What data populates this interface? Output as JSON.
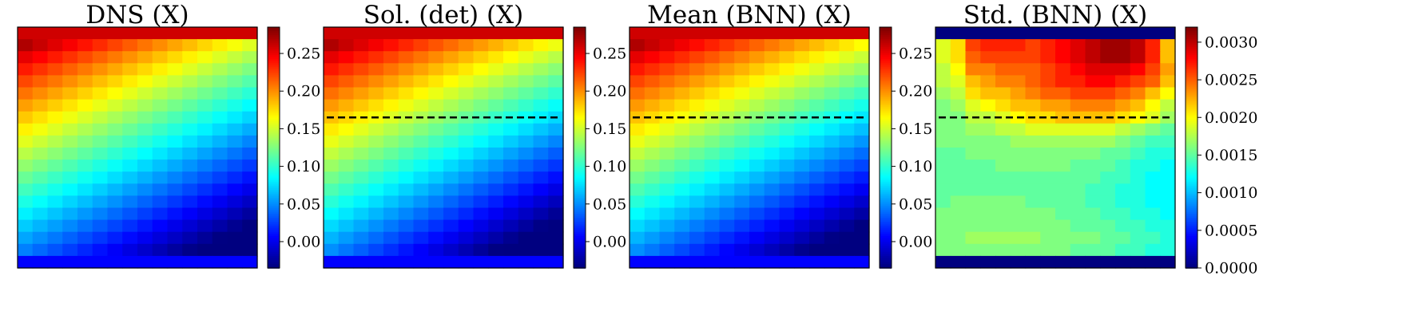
{
  "chart_data": [
    {
      "type": "heatmap",
      "title": "DNS (X)",
      "rows": 20,
      "cols": 16,
      "colormap": "jet",
      "vmin": -0.035,
      "vmax": 0.285,
      "colorbar_ticks": [
        0.0,
        0.05,
        0.1,
        0.15,
        0.2,
        0.25
      ],
      "colorbar_tick_labels": [
        "0.00",
        "0.05",
        "0.10",
        "0.15",
        "0.20",
        "0.25"
      ],
      "top_boundary_value": 0.26,
      "bottom_boundary_value": 0.005,
      "interior_top_left": 0.27,
      "interior_top_right": 0.155,
      "interior_bottom_left": 0.045,
      "interior_bottom_right": -0.025,
      "interior_bias": 0.0,
      "dashed_line": false,
      "grid": false
    },
    {
      "type": "heatmap",
      "title": "Sol. (det) (X)",
      "rows": 20,
      "cols": 16,
      "colormap": "jet",
      "vmin": -0.035,
      "vmax": 0.285,
      "colorbar_ticks": [
        0.0,
        0.05,
        0.1,
        0.15,
        0.2,
        0.25
      ],
      "colorbar_tick_labels": [
        "0.00",
        "0.05",
        "0.10",
        "0.15",
        "0.20",
        "0.25"
      ],
      "top_boundary_value": 0.26,
      "bottom_boundary_value": 0.005,
      "interior_top_left": 0.27,
      "interior_top_right": 0.16,
      "interior_bottom_left": 0.05,
      "interior_bottom_right": -0.03,
      "interior_bias": 0.0,
      "dashed_line": true,
      "dashed_line_row": 7.5,
      "grid": false
    },
    {
      "type": "heatmap",
      "title": "Mean (BNN) (X)",
      "rows": 20,
      "cols": 16,
      "colormap": "jet",
      "vmin": -0.035,
      "vmax": 0.285,
      "colorbar_ticks": [
        0.0,
        0.05,
        0.1,
        0.15,
        0.2,
        0.25
      ],
      "colorbar_tick_labels": [
        "0.00",
        "0.05",
        "0.10",
        "0.15",
        "0.20",
        "0.25"
      ],
      "top_boundary_value": 0.26,
      "bottom_boundary_value": 0.005,
      "interior_top_left": 0.27,
      "interior_top_right": 0.165,
      "interior_bottom_left": 0.05,
      "interior_bottom_right": -0.025,
      "interior_bias": 0.0,
      "dashed_line": true,
      "dashed_line_row": 7.5,
      "grid": false
    },
    {
      "type": "heatmap",
      "title": "Std. (BNN) (X)",
      "rows": 20,
      "cols": 16,
      "colormap": "jet",
      "vmin": 0.0,
      "vmax": 0.0032,
      "colorbar_ticks": [
        0.0,
        0.0005,
        0.001,
        0.0015,
        0.002,
        0.0025,
        0.003
      ],
      "colorbar_tick_labels": [
        "0.0000",
        "0.0005",
        "0.0010",
        "0.0015",
        "0.0020",
        "0.0025",
        "0.0030"
      ],
      "top_boundary_value": 0.0,
      "bottom_boundary_value": 0.0,
      "std_rows": [
        [
          0.0019,
          0.0021,
          0.0026,
          0.0027,
          0.0027,
          0.0027,
          0.0026,
          0.0027,
          0.0028,
          0.0029,
          0.003,
          0.0031,
          0.0031,
          0.003,
          0.0027,
          0.0022
        ],
        [
          0.0019,
          0.0021,
          0.0025,
          0.0026,
          0.0026,
          0.0026,
          0.0026,
          0.0027,
          0.0028,
          0.0029,
          0.003,
          0.0031,
          0.0031,
          0.003,
          0.0027,
          0.0022
        ],
        [
          0.0018,
          0.002,
          0.0024,
          0.0024,
          0.0025,
          0.0025,
          0.0025,
          0.0026,
          0.0027,
          0.0028,
          0.0029,
          0.0029,
          0.0029,
          0.0028,
          0.0026,
          0.0023
        ],
        [
          0.0018,
          0.0019,
          0.0022,
          0.0023,
          0.0024,
          0.0024,
          0.0025,
          0.0026,
          0.0027,
          0.0027,
          0.0028,
          0.0028,
          0.0027,
          0.0026,
          0.0025,
          0.0022
        ],
        [
          0.0017,
          0.0018,
          0.0021,
          0.0022,
          0.0022,
          0.0023,
          0.0024,
          0.0025,
          0.0025,
          0.0026,
          0.0026,
          0.0026,
          0.0025,
          0.0024,
          0.0022,
          0.002
        ],
        [
          0.0016,
          0.0017,
          0.0019,
          0.002,
          0.0021,
          0.0022,
          0.0022,
          0.0023,
          0.0023,
          0.0024,
          0.0024,
          0.0024,
          0.0023,
          0.0022,
          0.002,
          0.0018
        ],
        [
          0.0016,
          0.0016,
          0.0018,
          0.0018,
          0.0019,
          0.002,
          0.0021,
          0.0021,
          0.0022,
          0.0022,
          0.0022,
          0.0022,
          0.0021,
          0.002,
          0.0019,
          0.0017
        ],
        [
          0.0016,
          0.0016,
          0.0017,
          0.0017,
          0.0018,
          0.0018,
          0.0019,
          0.0019,
          0.0019,
          0.0019,
          0.0019,
          0.0019,
          0.0018,
          0.0017,
          0.0016,
          0.0015
        ],
        [
          0.0016,
          0.0016,
          0.0016,
          0.0016,
          0.0016,
          0.0017,
          0.0017,
          0.0017,
          0.0017,
          0.0017,
          0.0017,
          0.0017,
          0.0016,
          0.0015,
          0.0014,
          0.0014
        ],
        [
          0.0015,
          0.0015,
          0.0016,
          0.0016,
          0.0016,
          0.0016,
          0.0016,
          0.0016,
          0.0016,
          0.0016,
          0.0016,
          0.0015,
          0.0015,
          0.0014,
          0.0013,
          0.0013
        ],
        [
          0.0015,
          0.0015,
          0.0015,
          0.0015,
          0.0016,
          0.0016,
          0.0016,
          0.0016,
          0.0016,
          0.0015,
          0.0015,
          0.0015,
          0.0014,
          0.0013,
          0.0013,
          0.0012
        ],
        [
          0.0015,
          0.0015,
          0.0015,
          0.0015,
          0.0015,
          0.0015,
          0.0015,
          0.0015,
          0.0015,
          0.0015,
          0.0015,
          0.0014,
          0.0014,
          0.0013,
          0.0012,
          0.0012
        ],
        [
          0.0015,
          0.0015,
          0.0015,
          0.0015,
          0.0015,
          0.0015,
          0.0015,
          0.0015,
          0.0015,
          0.0015,
          0.0014,
          0.0014,
          0.0013,
          0.0013,
          0.0012,
          0.0012
        ],
        [
          0.0015,
          0.0016,
          0.0016,
          0.0016,
          0.0016,
          0.0016,
          0.0015,
          0.0015,
          0.0015,
          0.0015,
          0.0014,
          0.0014,
          0.0013,
          0.0013,
          0.0012,
          0.0012
        ],
        [
          0.0016,
          0.0016,
          0.0016,
          0.0016,
          0.0016,
          0.0016,
          0.0016,
          0.0016,
          0.0015,
          0.0015,
          0.0015,
          0.0014,
          0.0014,
          0.0013,
          0.0013,
          0.0012
        ],
        [
          0.0016,
          0.0016,
          0.0016,
          0.0016,
          0.0016,
          0.0016,
          0.0016,
          0.0016,
          0.0016,
          0.0015,
          0.0015,
          0.0015,
          0.0014,
          0.0014,
          0.0013,
          0.0013
        ],
        [
          0.0016,
          0.0016,
          0.0017,
          0.0017,
          0.0017,
          0.0017,
          0.0017,
          0.0016,
          0.0016,
          0.0016,
          0.0016,
          0.0015,
          0.0015,
          0.0014,
          0.0014,
          0.0013
        ],
        [
          0.0016,
          0.0016,
          0.0016,
          0.0016,
          0.0016,
          0.0016,
          0.0016,
          0.0016,
          0.0016,
          0.0015,
          0.0015,
          0.0015,
          0.0014,
          0.0014,
          0.0013,
          0.0013
        ]
      ],
      "dashed_line": true,
      "dashed_line_row": 7.5,
      "grid": false
    }
  ]
}
